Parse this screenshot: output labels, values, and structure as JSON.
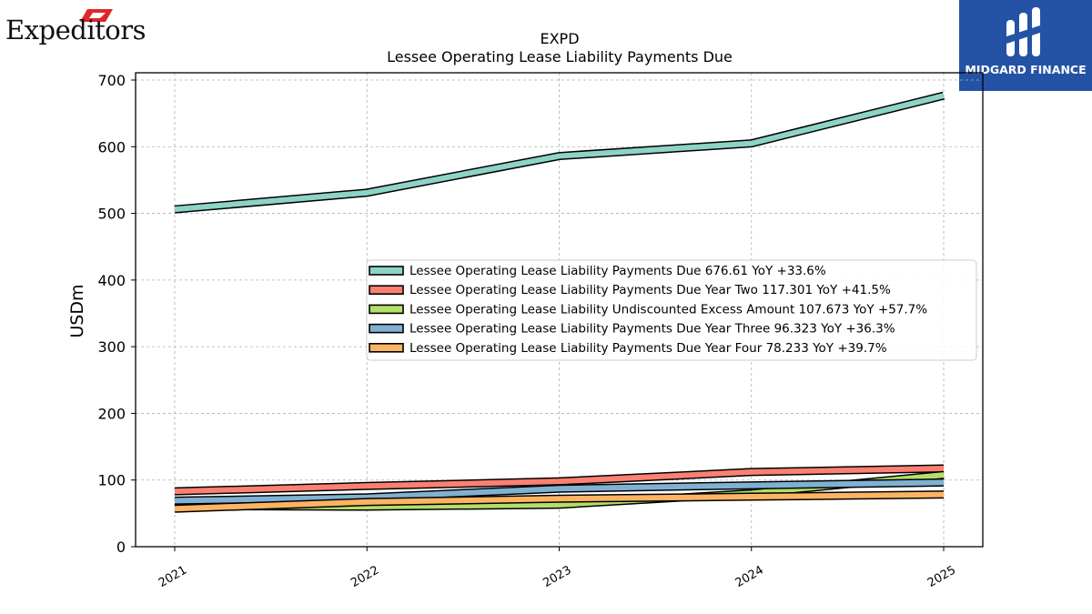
{
  "logos": {
    "left_company": "Expeditors",
    "right_brand": "MIDGARD FINANCE"
  },
  "chart_data": {
    "type": "line",
    "title": "EXPD",
    "subtitle": "Lessee Operating Lease Liability Payments Due",
    "xlabel": "",
    "ylabel": "USDm",
    "categories": [
      "2021",
      "2022",
      "2023",
      "2024",
      "2025"
    ],
    "ylim": [
      0,
      700
    ],
    "yticks": [
      0,
      100,
      200,
      300,
      400,
      500,
      600,
      700
    ],
    "grid": true,
    "legend_position": "center-right",
    "series": [
      {
        "name": "Lessee Operating Lease Liability Payments Due",
        "legend": "Lessee Operating Lease Liability Payments Due  676.61 YoY +33.6%",
        "color": "#8dd3c7",
        "values": [
          506,
          531,
          586,
          605,
          676.61
        ]
      },
      {
        "name": "Lessee Operating Lease Liability Payments Due Year Two",
        "legend": "Lessee Operating Lease Liability Payments Due Year Two  117.301 YoY +41.5%",
        "color": "#fb8072",
        "values": [
          83,
          91,
          98,
          112,
          117.301
        ]
      },
      {
        "name": "Lessee Operating Lease Liability Undiscounted Excess Amount",
        "legend": "Lessee Operating Lease Liability Undiscounted Excess Amount  107.673 YoY +57.7%",
        "color": "#b3de69",
        "values": [
          61,
          60,
          63,
          80,
          107.673
        ]
      },
      {
        "name": "Lessee Operating Lease Liability Payments Due Year Three",
        "legend": "Lessee Operating Lease Liability Payments Due Year Three  96.323 YoY +36.3%",
        "color": "#80b1d3",
        "values": [
          69,
          74,
          87,
          92,
          96.323
        ]
      },
      {
        "name": "Lessee Operating Lease Liability Payments Due Year Four",
        "legend": "Lessee Operating Lease Liability Payments Due Year Four  78.233 YoY +39.7%",
        "color": "#fdb462",
        "values": [
          57,
          67,
          72,
          75,
          78.233
        ]
      }
    ]
  }
}
